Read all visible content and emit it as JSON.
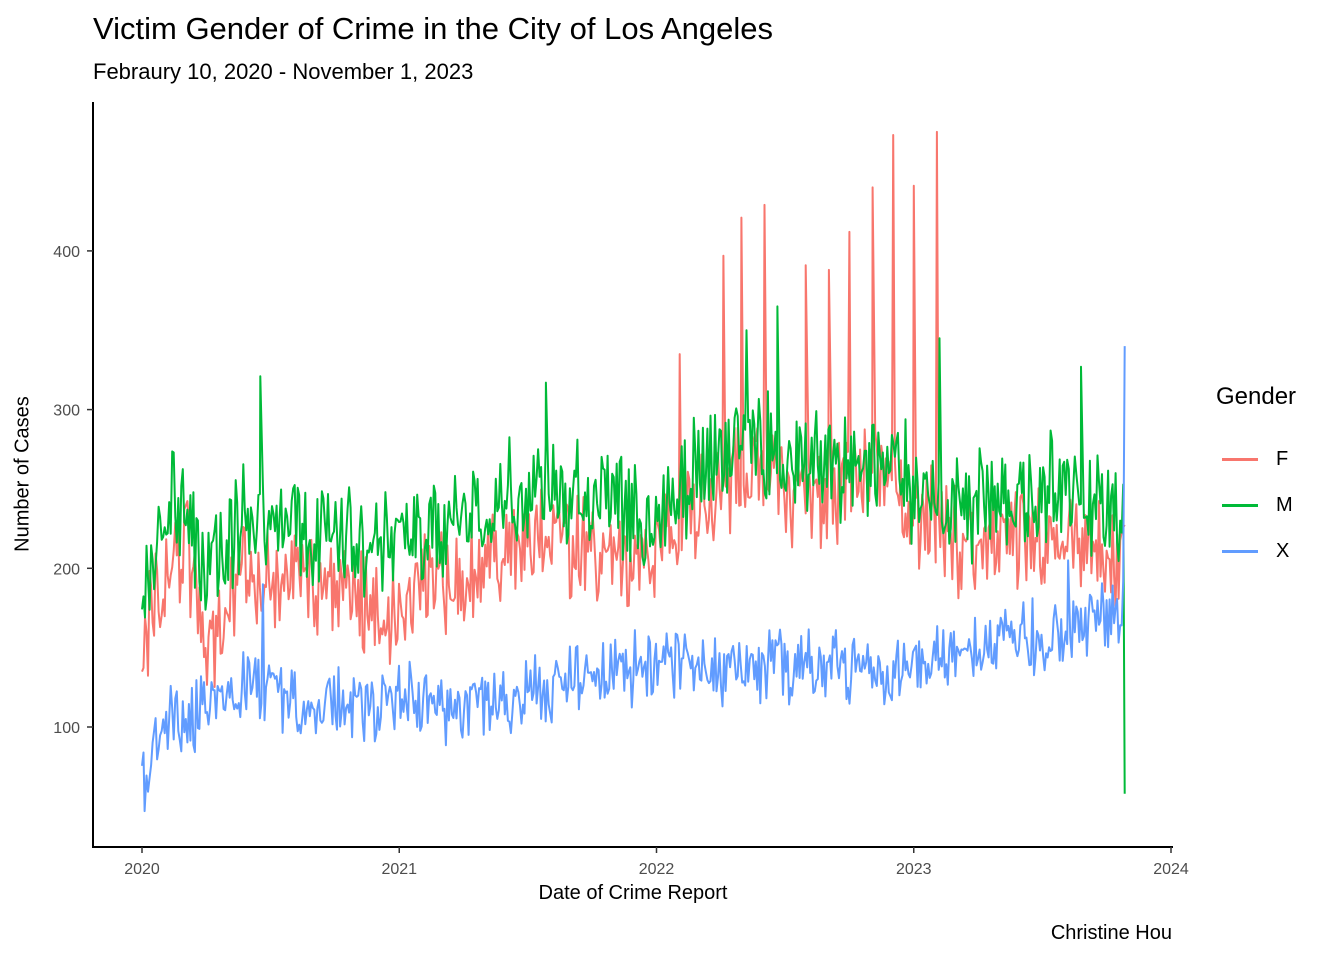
{
  "chart_data": {
    "type": "line",
    "title": "Victim Gender of Crime in the City of Los Angeles",
    "subtitle": "Febraury 10, 2020 - November 1, 2023",
    "caption": "Christine Hou",
    "xlabel": "Date of Crime Report",
    "ylabel": "Number of Cases",
    "xlim": [
      2019.8,
      2024.0
    ],
    "ylim": [
      25,
      495
    ],
    "x_ticks": [
      "2020",
      "2021",
      "2022",
      "2023",
      "2024"
    ],
    "y_ticks": [
      "100",
      "200",
      "300",
      "400"
    ],
    "grid": false,
    "legend": {
      "title": "Gender",
      "placement": "right"
    },
    "series": [
      {
        "name": "F",
        "color": "#F8766D",
        "x": [
          2020.0,
          2020.08,
          2020.17,
          2020.25,
          2020.33,
          2020.42,
          2020.5,
          2020.58,
          2020.67,
          2020.75,
          2020.83,
          2020.92,
          2021.0,
          2021.08,
          2021.17,
          2021.25,
          2021.33,
          2021.42,
          2021.5,
          2021.58,
          2021.67,
          2021.75,
          2021.83,
          2021.92,
          2022.0,
          2022.08,
          2022.17,
          2022.25,
          2022.33,
          2022.42,
          2022.5,
          2022.58,
          2022.67,
          2022.75,
          2022.83,
          2022.92,
          2023.0,
          2023.08,
          2023.17,
          2023.25,
          2023.33,
          2023.42,
          2023.5,
          2023.58,
          2023.67,
          2023.75,
          2023.82
        ],
        "values": [
          145,
          200,
          215,
          150,
          175,
          200,
          190,
          195,
          185,
          190,
          185,
          180,
          170,
          185,
          190,
          200,
          205,
          210,
          215,
          220,
          215,
          210,
          200,
          205,
          210,
          225,
          245,
          250,
          260,
          270,
          250,
          245,
          250,
          250,
          255,
          250,
          230,
          235,
          215,
          215,
          210,
          215,
          220,
          220,
          215,
          210,
          200
        ],
        "spikes": [
          {
            "x": 2022.26,
            "y": 397
          },
          {
            "x": 2022.33,
            "y": 421
          },
          {
            "x": 2022.42,
            "y": 429
          },
          {
            "x": 2022.58,
            "y": 391
          },
          {
            "x": 2022.67,
            "y": 388
          },
          {
            "x": 2022.75,
            "y": 412
          },
          {
            "x": 2022.84,
            "y": 440
          },
          {
            "x": 2022.92,
            "y": 473
          },
          {
            "x": 2023.0,
            "y": 441
          },
          {
            "x": 2023.09,
            "y": 475
          },
          {
            "x": 2022.09,
            "y": 335
          }
        ]
      },
      {
        "name": "M",
        "color": "#00BA38",
        "x": [
          2020.0,
          2020.08,
          2020.17,
          2020.25,
          2020.33,
          2020.42,
          2020.5,
          2020.58,
          2020.67,
          2020.75,
          2020.83,
          2020.92,
          2021.0,
          2021.08,
          2021.17,
          2021.25,
          2021.33,
          2021.42,
          2021.5,
          2021.58,
          2021.67,
          2021.75,
          2021.83,
          2021.92,
          2022.0,
          2022.08,
          2022.17,
          2022.25,
          2022.33,
          2022.42,
          2022.5,
          2022.58,
          2022.67,
          2022.75,
          2022.83,
          2022.92,
          2023.0,
          2023.08,
          2023.17,
          2023.25,
          2023.33,
          2023.42,
          2023.5,
          2023.58,
          2023.67,
          2023.75,
          2023.82
        ],
        "values": [
          175,
          235,
          245,
          195,
          215,
          240,
          230,
          225,
          220,
          225,
          220,
          215,
          205,
          220,
          225,
          235,
          240,
          245,
          250,
          255,
          250,
          245,
          235,
          240,
          230,
          250,
          265,
          270,
          275,
          280,
          265,
          260,
          265,
          265,
          265,
          265,
          250,
          260,
          240,
          240,
          240,
          245,
          250,
          250,
          245,
          240,
          230
        ],
        "spikes": [
          {
            "x": 2020.46,
            "y": 321
          },
          {
            "x": 2021.57,
            "y": 317
          },
          {
            "x": 2022.35,
            "y": 350
          },
          {
            "x": 2022.47,
            "y": 365
          },
          {
            "x": 2023.1,
            "y": 345
          },
          {
            "x": 2023.65,
            "y": 327
          },
          {
            "x": 2023.82,
            "y": 58
          }
        ]
      },
      {
        "name": "X",
        "color": "#619CFF",
        "x": [
          2020.0,
          2020.08,
          2020.17,
          2020.25,
          2020.33,
          2020.42,
          2020.5,
          2020.58,
          2020.67,
          2020.75,
          2020.83,
          2020.92,
          2021.0,
          2021.08,
          2021.17,
          2021.25,
          2021.33,
          2021.42,
          2021.5,
          2021.58,
          2021.67,
          2021.75,
          2021.83,
          2021.92,
          2022.0,
          2022.08,
          2022.17,
          2022.25,
          2022.33,
          2022.42,
          2022.5,
          2022.58,
          2022.67,
          2022.75,
          2022.83,
          2022.92,
          2023.0,
          2023.08,
          2023.17,
          2023.25,
          2023.33,
          2023.42,
          2023.5,
          2023.58,
          2023.67,
          2023.75,
          2023.82
        ],
        "values": [
          70,
          100,
          105,
          110,
          115,
          130,
          120,
          115,
          115,
          115,
          115,
          115,
          120,
          115,
          110,
          112,
          115,
          118,
          122,
          125,
          128,
          132,
          135,
          138,
          140,
          140,
          138,
          135,
          135,
          137,
          138,
          138,
          138,
          136,
          135,
          135,
          135,
          140,
          150,
          155,
          155,
          155,
          158,
          160,
          165,
          170,
          180
        ],
        "spikes": [
          {
            "x": 2020.01,
            "y": 47
          },
          {
            "x": 2020.47,
            "y": 190
          },
          {
            "x": 2023.6,
            "y": 205
          },
          {
            "x": 2023.82,
            "y": 340
          }
        ]
      }
    ]
  }
}
